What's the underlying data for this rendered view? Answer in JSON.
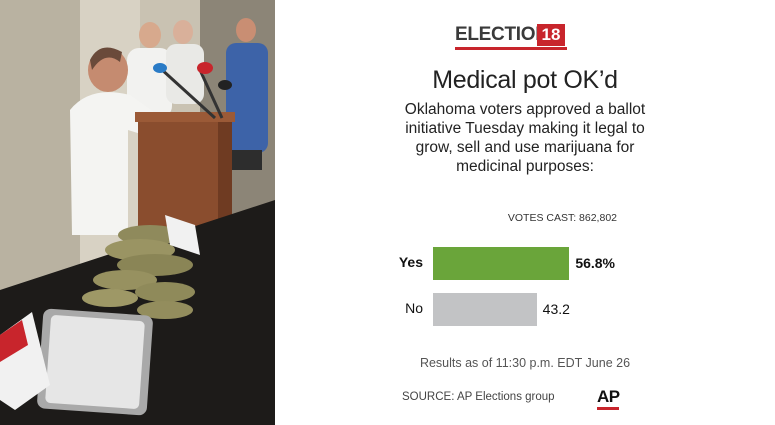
{
  "photo": {
    "description_icon": "press-conference-photo-icon"
  },
  "logo": {
    "text": "ELECTION",
    "number": "18"
  },
  "title": "Medical pot OK’d",
  "subtitle": "Oklahoma voters approved a ballot initiative Tuesday making it legal to grow, sell and use marijuana for medicinal purposes:",
  "votes_cast": "VOTES CAST: 862,802",
  "bars": [
    {
      "label": "Yes",
      "value_label": "56.8%"
    },
    {
      "label": "No",
      "value_label": "43.2"
    }
  ],
  "as_of": "Results as of 11:30 p.m. EDT June 26",
  "source": "SOURCE: AP Elections group",
  "ap_logo": "AP",
  "colors": {
    "yes": "#6aa53a",
    "no": "#c2c3c5",
    "accent": "#c8252c"
  },
  "chart_data": {
    "type": "bar",
    "orientation": "horizontal",
    "categories": [
      "Yes",
      "No"
    ],
    "values": [
      56.8,
      43.2
    ],
    "title": "Medical pot OK’d",
    "xlabel": "",
    "ylabel": "",
    "xlim": [
      0,
      100
    ],
    "grid": false
  }
}
